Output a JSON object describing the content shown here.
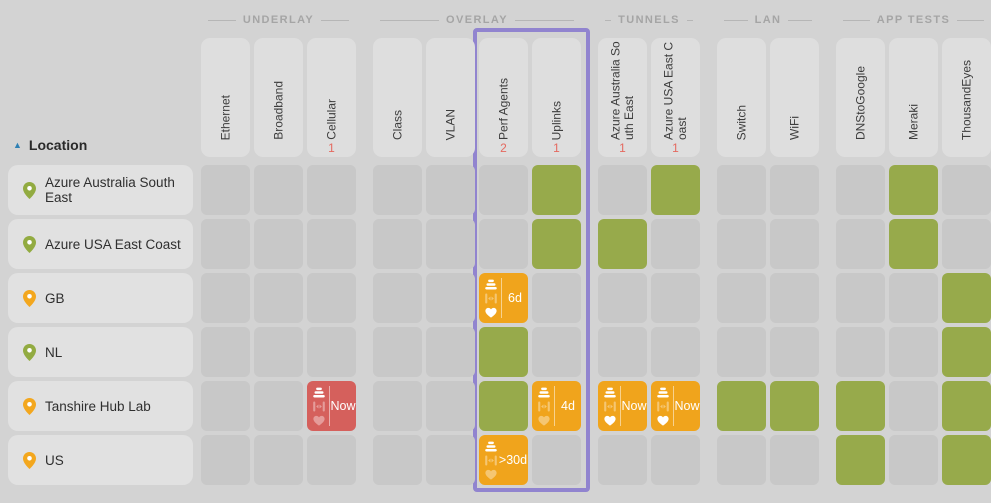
{
  "window": {
    "background": "#d3d3d3"
  },
  "sort": {
    "arrow": "▲",
    "label": "Location"
  },
  "groups": [
    {
      "label": "UNDERLAY"
    },
    {
      "label": "OVERLAY"
    },
    {
      "label": "TUNNELS"
    },
    {
      "label": "LAN"
    },
    {
      "label": "APP TESTS"
    }
  ],
  "columns": [
    {
      "label": "Ethernet",
      "group": "UNDERLAY"
    },
    {
      "label": "Broadband",
      "group": "UNDERLAY"
    },
    {
      "label": "Cellular",
      "group": "UNDERLAY",
      "count": "1"
    },
    {
      "label": "Class",
      "group": "OVERLAY"
    },
    {
      "label": "VLAN",
      "group": "OVERLAY"
    },
    {
      "label": "Perf Agents",
      "group": "OVERLAY",
      "count": "2"
    },
    {
      "label": "Uplinks",
      "group": "OVERLAY",
      "count": "1"
    },
    {
      "label": "Azure Australia South East",
      "group": "TUNNELS",
      "count": "1"
    },
    {
      "label": "Azure USA East Coast",
      "group": "TUNNELS",
      "count": "1"
    },
    {
      "label": "Switch",
      "group": "LAN"
    },
    {
      "label": "WiFi",
      "group": "LAN"
    },
    {
      "label": "DNStoGoogle",
      "group": "APP TESTS"
    },
    {
      "label": "Meraki",
      "group": "APP TESTS"
    },
    {
      "label": "ThousandEyes",
      "group": "APP TESTS"
    }
  ],
  "rows": [
    {
      "location": "Azure Australia South East",
      "pin": "green",
      "cells": [
        {
          "state": "empty"
        },
        {
          "state": "empty"
        },
        {
          "state": "empty"
        },
        {
          "state": "empty"
        },
        {
          "state": "empty"
        },
        {
          "state": "empty"
        },
        {
          "state": "ok"
        },
        {
          "state": "empty"
        },
        {
          "state": "ok"
        },
        {
          "state": "empty"
        },
        {
          "state": "empty"
        },
        {
          "state": "empty"
        },
        {
          "state": "ok"
        },
        {
          "state": "empty"
        }
      ]
    },
    {
      "location": "Azure USA East Coast",
      "pin": "green",
      "cells": [
        {
          "state": "empty"
        },
        {
          "state": "empty"
        },
        {
          "state": "empty"
        },
        {
          "state": "empty"
        },
        {
          "state": "empty"
        },
        {
          "state": "empty"
        },
        {
          "state": "ok"
        },
        {
          "state": "ok"
        },
        {
          "state": "empty"
        },
        {
          "state": "empty"
        },
        {
          "state": "empty"
        },
        {
          "state": "empty"
        },
        {
          "state": "ok"
        },
        {
          "state": "empty"
        }
      ]
    },
    {
      "location": "GB",
      "pin": "orange",
      "cells": [
        {
          "state": "empty"
        },
        {
          "state": "empty"
        },
        {
          "state": "empty"
        },
        {
          "state": "empty"
        },
        {
          "state": "empty"
        },
        {
          "state": "warning",
          "label": "6d",
          "stack": "bright",
          "bandwidth": "dim",
          "health": "bright",
          "divider": true
        },
        {
          "state": "empty"
        },
        {
          "state": "empty"
        },
        {
          "state": "empty"
        },
        {
          "state": "empty"
        },
        {
          "state": "empty"
        },
        {
          "state": "empty"
        },
        {
          "state": "empty"
        },
        {
          "state": "ok"
        }
      ]
    },
    {
      "location": "NL",
      "pin": "green",
      "cells": [
        {
          "state": "empty"
        },
        {
          "state": "empty"
        },
        {
          "state": "empty"
        },
        {
          "state": "empty"
        },
        {
          "state": "empty"
        },
        {
          "state": "ok"
        },
        {
          "state": "empty"
        },
        {
          "state": "empty"
        },
        {
          "state": "empty"
        },
        {
          "state": "empty"
        },
        {
          "state": "empty"
        },
        {
          "state": "empty"
        },
        {
          "state": "empty"
        },
        {
          "state": "ok"
        }
      ]
    },
    {
      "location": "Tanshire Hub Lab",
      "pin": "orange",
      "cells": [
        {
          "state": "empty"
        },
        {
          "state": "empty"
        },
        {
          "state": "critical",
          "label": "Now",
          "stack": "bright",
          "bandwidth": "dim",
          "health": "dim",
          "divider": true
        },
        {
          "state": "empty"
        },
        {
          "state": "empty"
        },
        {
          "state": "ok"
        },
        {
          "state": "warning",
          "label": "4d",
          "stack": "bright",
          "bandwidth": "dim",
          "health": "dim",
          "divider": true
        },
        {
          "state": "warning",
          "label": "Now",
          "stack": "bright",
          "bandwidth": "dim",
          "health": "bright",
          "divider": true
        },
        {
          "state": "warning",
          "label": "Now",
          "stack": "bright",
          "bandwidth": "dim",
          "health": "bright",
          "divider": true
        },
        {
          "state": "ok"
        },
        {
          "state": "ok"
        },
        {
          "state": "ok"
        },
        {
          "state": "empty"
        },
        {
          "state": "ok"
        }
      ]
    },
    {
      "location": "US",
      "pin": "orange",
      "cells": [
        {
          "state": "empty"
        },
        {
          "state": "empty"
        },
        {
          "state": "empty"
        },
        {
          "state": "empty"
        },
        {
          "state": "empty"
        },
        {
          "state": "warning",
          "label": ">30d",
          "stack": "bright",
          "bandwidth": "dim",
          "health": "dim",
          "divider": false
        },
        {
          "state": "empty"
        },
        {
          "state": "empty"
        },
        {
          "state": "empty"
        },
        {
          "state": "empty"
        },
        {
          "state": "empty"
        },
        {
          "state": "ok"
        },
        {
          "state": "empty"
        },
        {
          "state": "ok"
        }
      ]
    }
  ],
  "highlight": {
    "columns": [
      "Perf Agents",
      "Uplinks"
    ],
    "border_color": "#9184cf"
  },
  "colors": {
    "empty": "#c8c8c8",
    "ok": "#97aa4b",
    "warning": "#f0a41c",
    "critical": "#d5605c",
    "count": "#e4695f",
    "pin_green": "#92ab41",
    "pin_orange": "#f3a71e",
    "sort_arrow": "#2e80b4"
  }
}
